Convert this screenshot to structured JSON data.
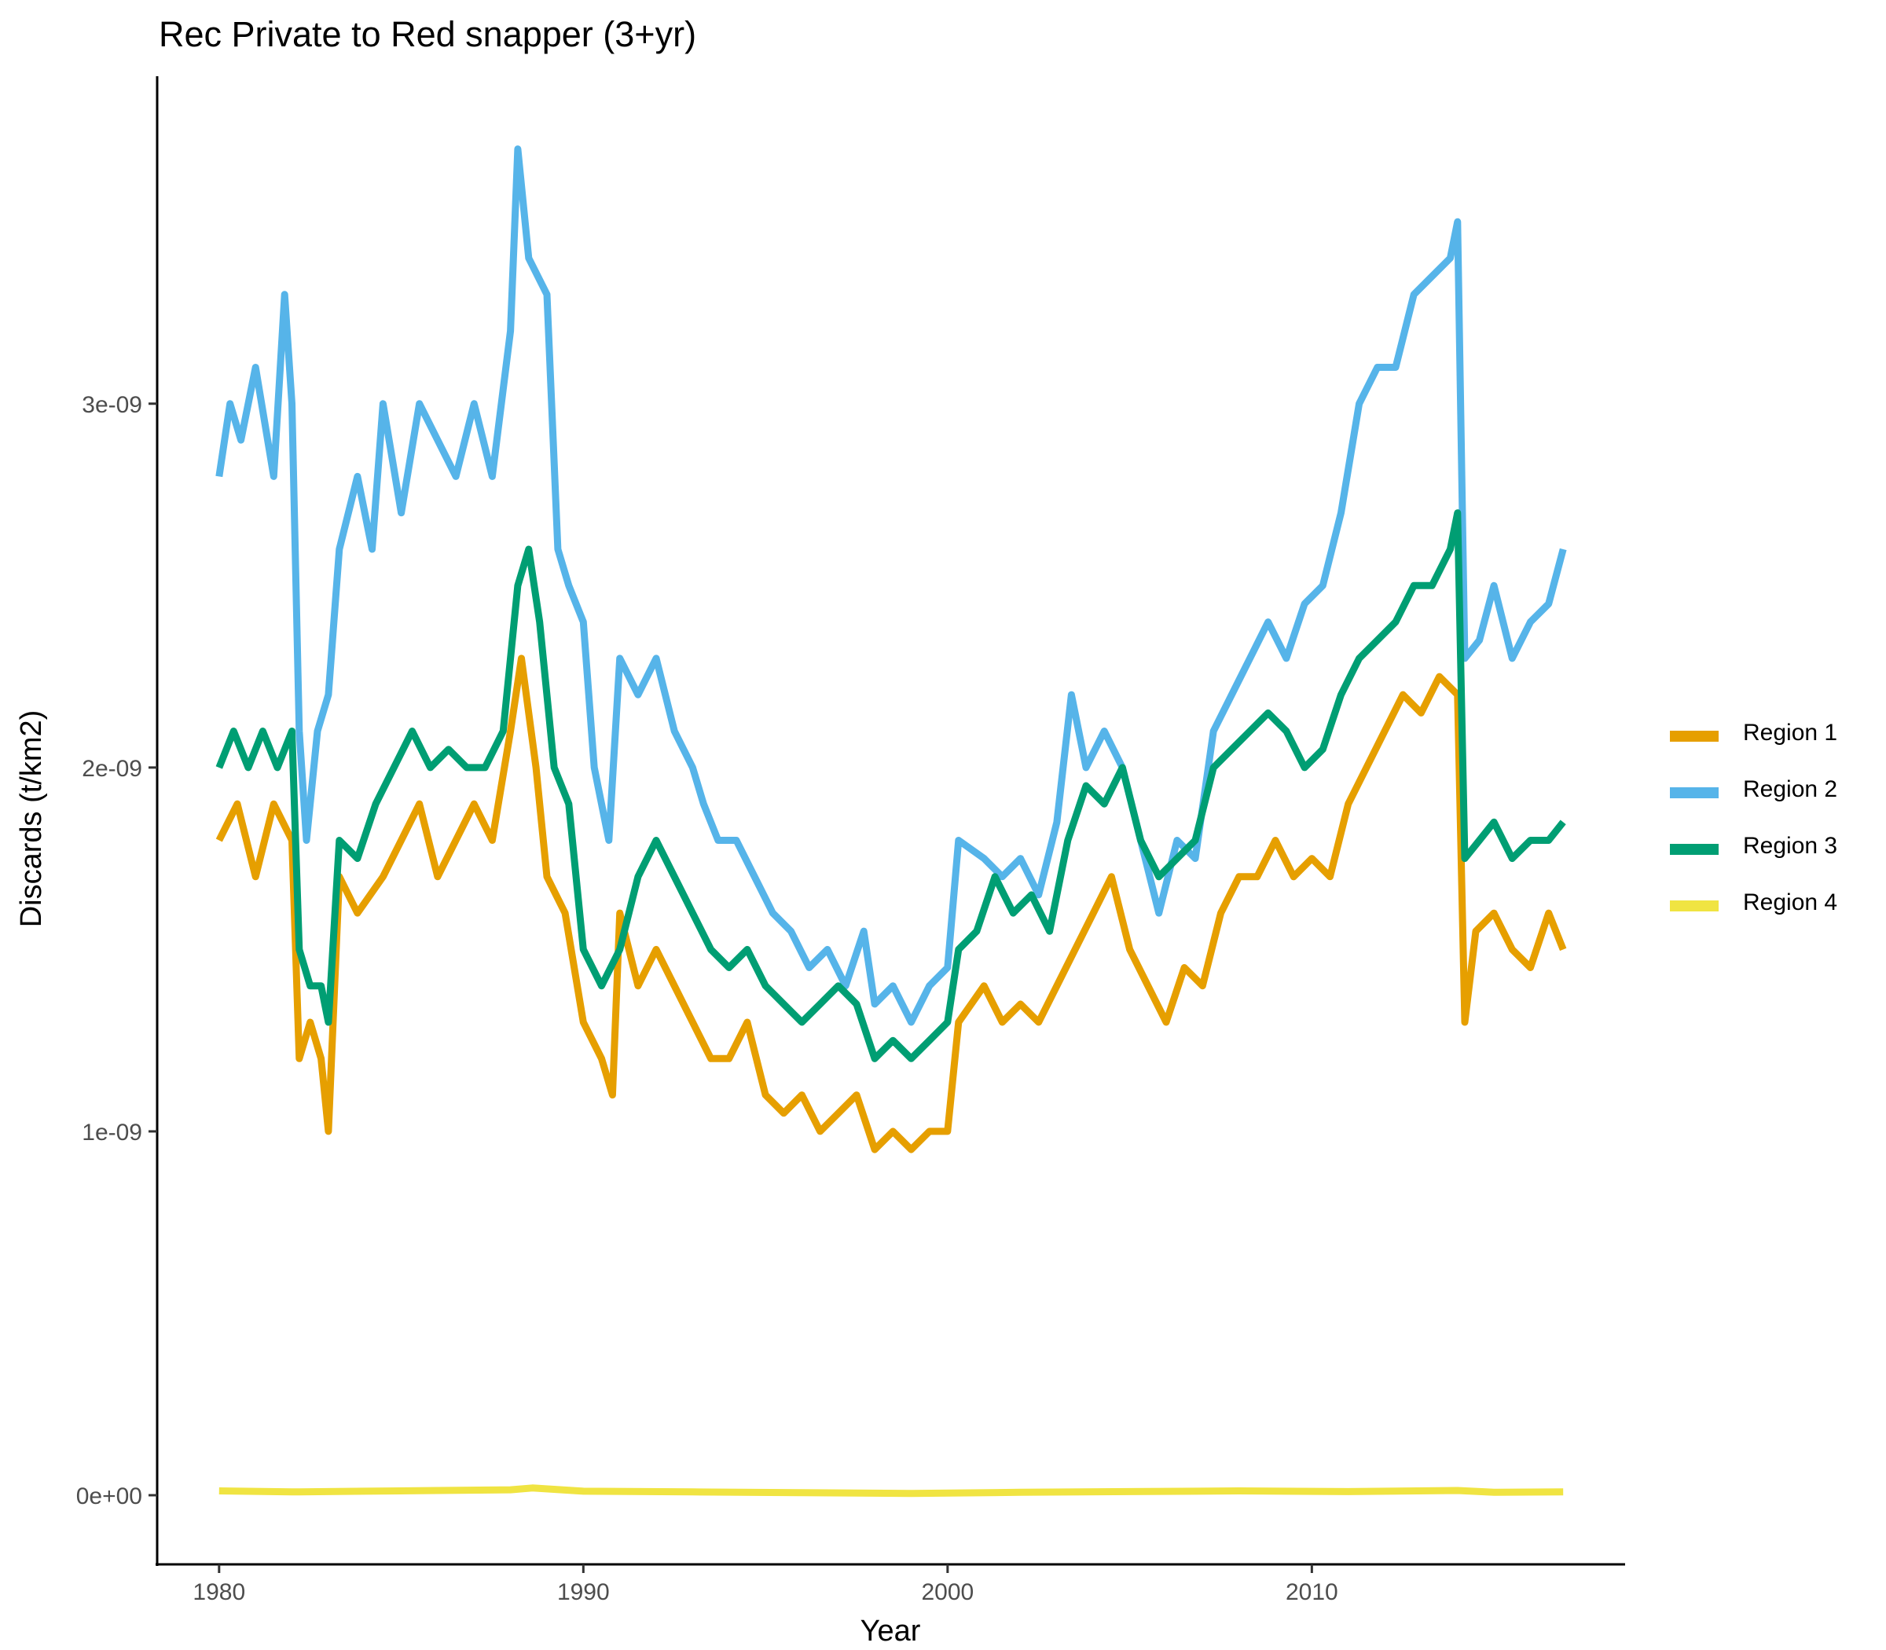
{
  "chart_data": {
    "type": "line",
    "title": "Rec Private to Red snapper (3+yr)",
    "xlabel": "Year",
    "ylabel": "Discards (t/km2)",
    "xlim": [
      1978.3,
      2018.6
    ],
    "ylim": [
      -1.9e-10,
      3.9e-09
    ],
    "x_ticks": [
      1980,
      1990,
      2000,
      2010
    ],
    "x_tick_labels": [
      "1980",
      "1990",
      "2000",
      "2010"
    ],
    "y_ticks": [
      0,
      1e-09,
      2e-09,
      3e-09
    ],
    "y_tick_labels": [
      "0e+00",
      "1e-09",
      "2e-09",
      "3e-09"
    ],
    "grid": false,
    "legend_position": "right",
    "series": [
      {
        "name": "Region 1",
        "color": "#E69F00",
        "points": [
          [
            1980.0,
            1.8e-09
          ],
          [
            1980.5,
            1.9e-09
          ],
          [
            1981.0,
            1.7e-09
          ],
          [
            1981.5,
            1.9e-09
          ],
          [
            1982.0,
            1.8e-09
          ],
          [
            1982.2,
            1.2e-09
          ],
          [
            1982.5,
            1.3e-09
          ],
          [
            1982.8,
            1.2e-09
          ],
          [
            1983.0,
            1e-09
          ],
          [
            1983.3,
            1.7e-09
          ],
          [
            1983.8,
            1.6e-09
          ],
          [
            1984.5,
            1.7e-09
          ],
          [
            1985.0,
            1.8e-09
          ],
          [
            1985.5,
            1.9e-09
          ],
          [
            1986.0,
            1.7e-09
          ],
          [
            1986.5,
            1.8e-09
          ],
          [
            1987.0,
            1.9e-09
          ],
          [
            1987.5,
            1.8e-09
          ],
          [
            1988.0,
            2.1e-09
          ],
          [
            1988.3,
            2.3e-09
          ],
          [
            1988.7,
            2e-09
          ],
          [
            1989.0,
            1.7e-09
          ],
          [
            1989.5,
            1.6e-09
          ],
          [
            1990.0,
            1.3e-09
          ],
          [
            1990.5,
            1.2e-09
          ],
          [
            1990.8,
            1.1e-09
          ],
          [
            1991.0,
            1.6e-09
          ],
          [
            1991.5,
            1.4e-09
          ],
          [
            1992.0,
            1.5e-09
          ],
          [
            1992.5,
            1.4e-09
          ],
          [
            1993.0,
            1.3e-09
          ],
          [
            1993.5,
            1.2e-09
          ],
          [
            1994.0,
            1.2e-09
          ],
          [
            1994.5,
            1.3e-09
          ],
          [
            1995.0,
            1.1e-09
          ],
          [
            1995.5,
            1.05e-09
          ],
          [
            1996.0,
            1.1e-09
          ],
          [
            1996.5,
            1e-09
          ],
          [
            1997.0,
            1.05e-09
          ],
          [
            1997.5,
            1.1e-09
          ],
          [
            1998.0,
            9.5e-10
          ],
          [
            1998.5,
            1e-09
          ],
          [
            1999.0,
            9.5e-10
          ],
          [
            1999.5,
            1e-09
          ],
          [
            2000.0,
            1e-09
          ],
          [
            2000.3,
            1.3e-09
          ],
          [
            2001.0,
            1.4e-09
          ],
          [
            2001.5,
            1.3e-09
          ],
          [
            2002.0,
            1.35e-09
          ],
          [
            2002.5,
            1.3e-09
          ],
          [
            2003.0,
            1.4e-09
          ],
          [
            2003.5,
            1.5e-09
          ],
          [
            2004.0,
            1.6e-09
          ],
          [
            2004.5,
            1.7e-09
          ],
          [
            2005.0,
            1.5e-09
          ],
          [
            2005.5,
            1.4e-09
          ],
          [
            2006.0,
            1.3e-09
          ],
          [
            2006.5,
            1.45e-09
          ],
          [
            2007.0,
            1.4e-09
          ],
          [
            2007.5,
            1.6e-09
          ],
          [
            2008.0,
            1.7e-09
          ],
          [
            2008.5,
            1.7e-09
          ],
          [
            2009.0,
            1.8e-09
          ],
          [
            2009.5,
            1.7e-09
          ],
          [
            2010.0,
            1.75e-09
          ],
          [
            2010.5,
            1.7e-09
          ],
          [
            2011.0,
            1.9e-09
          ],
          [
            2011.5,
            2e-09
          ],
          [
            2012.0,
            2.1e-09
          ],
          [
            2012.5,
            2.2e-09
          ],
          [
            2013.0,
            2.15e-09
          ],
          [
            2013.5,
            2.25e-09
          ],
          [
            2014.0,
            2.2e-09
          ],
          [
            2014.2,
            1.3e-09
          ],
          [
            2014.5,
            1.55e-09
          ],
          [
            2015.0,
            1.6e-09
          ],
          [
            2015.5,
            1.5e-09
          ],
          [
            2016.0,
            1.45e-09
          ],
          [
            2016.5,
            1.6e-09
          ],
          [
            2016.9,
            1.5e-09
          ]
        ]
      },
      {
        "name": "Region 2",
        "color": "#56B4E9",
        "points": [
          [
            1980.0,
            2.8e-09
          ],
          [
            1980.3,
            3e-09
          ],
          [
            1980.6,
            2.9e-09
          ],
          [
            1981.0,
            3.1e-09
          ],
          [
            1981.5,
            2.8e-09
          ],
          [
            1981.8,
            3.3e-09
          ],
          [
            1982.0,
            3e-09
          ],
          [
            1982.2,
            2.1e-09
          ],
          [
            1982.4,
            1.8e-09
          ],
          [
            1982.7,
            2.1e-09
          ],
          [
            1983.0,
            2.2e-09
          ],
          [
            1983.3,
            2.6e-09
          ],
          [
            1983.8,
            2.8e-09
          ],
          [
            1984.2,
            2.6e-09
          ],
          [
            1984.5,
            3e-09
          ],
          [
            1985.0,
            2.7e-09
          ],
          [
            1985.5,
            3e-09
          ],
          [
            1986.0,
            2.9e-09
          ],
          [
            1986.5,
            2.8e-09
          ],
          [
            1987.0,
            3e-09
          ],
          [
            1987.5,
            2.8e-09
          ],
          [
            1988.0,
            3.2e-09
          ],
          [
            1988.2,
            3.7e-09
          ],
          [
            1988.5,
            3.4e-09
          ],
          [
            1989.0,
            3.3e-09
          ],
          [
            1989.3,
            2.6e-09
          ],
          [
            1989.6,
            2.5e-09
          ],
          [
            1990.0,
            2.4e-09
          ],
          [
            1990.3,
            2e-09
          ],
          [
            1990.7,
            1.8e-09
          ],
          [
            1991.0,
            2.3e-09
          ],
          [
            1991.5,
            2.2e-09
          ],
          [
            1992.0,
            2.3e-09
          ],
          [
            1992.5,
            2.1e-09
          ],
          [
            1993.0,
            2e-09
          ],
          [
            1993.3,
            1.9e-09
          ],
          [
            1993.7,
            1.8e-09
          ],
          [
            1994.2,
            1.8e-09
          ],
          [
            1994.7,
            1.7e-09
          ],
          [
            1995.2,
            1.6e-09
          ],
          [
            1995.7,
            1.55e-09
          ],
          [
            1996.2,
            1.45e-09
          ],
          [
            1996.7,
            1.5e-09
          ],
          [
            1997.2,
            1.4e-09
          ],
          [
            1997.7,
            1.55e-09
          ],
          [
            1998.0,
            1.35e-09
          ],
          [
            1998.5,
            1.4e-09
          ],
          [
            1999.0,
            1.3e-09
          ],
          [
            1999.5,
            1.4e-09
          ],
          [
            2000.0,
            1.45e-09
          ],
          [
            2000.3,
            1.8e-09
          ],
          [
            2001.0,
            1.75e-09
          ],
          [
            2001.5,
            1.7e-09
          ],
          [
            2002.0,
            1.75e-09
          ],
          [
            2002.5,
            1.65e-09
          ],
          [
            2003.0,
            1.85e-09
          ],
          [
            2003.4,
            2.2e-09
          ],
          [
            2003.8,
            2e-09
          ],
          [
            2004.3,
            2.1e-09
          ],
          [
            2004.8,
            2e-09
          ],
          [
            2005.3,
            1.8e-09
          ],
          [
            2005.8,
            1.6e-09
          ],
          [
            2006.3,
            1.8e-09
          ],
          [
            2006.8,
            1.75e-09
          ],
          [
            2007.3,
            2.1e-09
          ],
          [
            2007.8,
            2.2e-09
          ],
          [
            2008.3,
            2.3e-09
          ],
          [
            2008.8,
            2.4e-09
          ],
          [
            2009.3,
            2.3e-09
          ],
          [
            2009.8,
            2.45e-09
          ],
          [
            2010.3,
            2.5e-09
          ],
          [
            2010.8,
            2.7e-09
          ],
          [
            2011.3,
            3e-09
          ],
          [
            2011.8,
            3.1e-09
          ],
          [
            2012.3,
            3.1e-09
          ],
          [
            2012.8,
            3.3e-09
          ],
          [
            2013.3,
            3.35e-09
          ],
          [
            2013.8,
            3.4e-09
          ],
          [
            2014.0,
            3.5e-09
          ],
          [
            2014.2,
            2.3e-09
          ],
          [
            2014.6,
            2.35e-09
          ],
          [
            2015.0,
            2.5e-09
          ],
          [
            2015.5,
            2.3e-09
          ],
          [
            2016.0,
            2.4e-09
          ],
          [
            2016.5,
            2.45e-09
          ],
          [
            2016.9,
            2.6e-09
          ]
        ]
      },
      {
        "name": "Region 3",
        "color": "#009E73",
        "points": [
          [
            1980.0,
            2e-09
          ],
          [
            1980.4,
            2.1e-09
          ],
          [
            1980.8,
            2e-09
          ],
          [
            1981.2,
            2.1e-09
          ],
          [
            1981.6,
            2e-09
          ],
          [
            1982.0,
            2.1e-09
          ],
          [
            1982.2,
            1.5e-09
          ],
          [
            1982.5,
            1.4e-09
          ],
          [
            1982.8,
            1.4e-09
          ],
          [
            1983.0,
            1.3e-09
          ],
          [
            1983.3,
            1.8e-09
          ],
          [
            1983.8,
            1.75e-09
          ],
          [
            1984.3,
            1.9e-09
          ],
          [
            1984.8,
            2e-09
          ],
          [
            1985.3,
            2.1e-09
          ],
          [
            1985.8,
            2e-09
          ],
          [
            1986.3,
            2.05e-09
          ],
          [
            1986.8,
            2e-09
          ],
          [
            1987.3,
            2e-09
          ],
          [
            1987.8,
            2.1e-09
          ],
          [
            1988.2,
            2.5e-09
          ],
          [
            1988.5,
            2.6e-09
          ],
          [
            1988.8,
            2.4e-09
          ],
          [
            1989.2,
            2e-09
          ],
          [
            1989.6,
            1.9e-09
          ],
          [
            1990.0,
            1.5e-09
          ],
          [
            1990.5,
            1.4e-09
          ],
          [
            1991.0,
            1.5e-09
          ],
          [
            1991.5,
            1.7e-09
          ],
          [
            1992.0,
            1.8e-09
          ],
          [
            1992.5,
            1.7e-09
          ],
          [
            1993.0,
            1.6e-09
          ],
          [
            1993.5,
            1.5e-09
          ],
          [
            1994.0,
            1.45e-09
          ],
          [
            1994.5,
            1.5e-09
          ],
          [
            1995.0,
            1.4e-09
          ],
          [
            1995.5,
            1.35e-09
          ],
          [
            1996.0,
            1.3e-09
          ],
          [
            1996.5,
            1.35e-09
          ],
          [
            1997.0,
            1.4e-09
          ],
          [
            1997.5,
            1.35e-09
          ],
          [
            1998.0,
            1.2e-09
          ],
          [
            1998.5,
            1.25e-09
          ],
          [
            1999.0,
            1.2e-09
          ],
          [
            1999.5,
            1.25e-09
          ],
          [
            2000.0,
            1.3e-09
          ],
          [
            2000.3,
            1.5e-09
          ],
          [
            2000.8,
            1.55e-09
          ],
          [
            2001.3,
            1.7e-09
          ],
          [
            2001.8,
            1.6e-09
          ],
          [
            2002.3,
            1.65e-09
          ],
          [
            2002.8,
            1.55e-09
          ],
          [
            2003.3,
            1.8e-09
          ],
          [
            2003.8,
            1.95e-09
          ],
          [
            2004.3,
            1.9e-09
          ],
          [
            2004.8,
            2e-09
          ],
          [
            2005.3,
            1.8e-09
          ],
          [
            2005.8,
            1.7e-09
          ],
          [
            2006.3,
            1.75e-09
          ],
          [
            2006.8,
            1.8e-09
          ],
          [
            2007.3,
            2e-09
          ],
          [
            2007.8,
            2.05e-09
          ],
          [
            2008.3,
            2.1e-09
          ],
          [
            2008.8,
            2.15e-09
          ],
          [
            2009.3,
            2.1e-09
          ],
          [
            2009.8,
            2e-09
          ],
          [
            2010.3,
            2.05e-09
          ],
          [
            2010.8,
            2.2e-09
          ],
          [
            2011.3,
            2.3e-09
          ],
          [
            2011.8,
            2.35e-09
          ],
          [
            2012.3,
            2.4e-09
          ],
          [
            2012.8,
            2.5e-09
          ],
          [
            2013.3,
            2.5e-09
          ],
          [
            2013.8,
            2.6e-09
          ],
          [
            2014.0,
            2.7e-09
          ],
          [
            2014.2,
            1.75e-09
          ],
          [
            2014.6,
            1.8e-09
          ],
          [
            2015.0,
            1.85e-09
          ],
          [
            2015.5,
            1.75e-09
          ],
          [
            2016.0,
            1.8e-09
          ],
          [
            2016.5,
            1.8e-09
          ],
          [
            2016.9,
            1.85e-09
          ]
        ]
      },
      {
        "name": "Region 4",
        "color": "#F0E442",
        "points": [
          [
            1980.0,
            1.2e-11
          ],
          [
            1982.0,
            9e-12
          ],
          [
            1984.0,
            1.1e-11
          ],
          [
            1986.0,
            1.3e-11
          ],
          [
            1988.0,
            1.5e-11
          ],
          [
            1988.6,
            2e-11
          ],
          [
            1990.0,
            1.1e-11
          ],
          [
            1993.0,
            9e-12
          ],
          [
            1996.0,
            7e-12
          ],
          [
            1999.0,
            5e-12
          ],
          [
            2002.0,
            8e-12
          ],
          [
            2005.0,
            1e-11
          ],
          [
            2008.0,
            1.2e-11
          ],
          [
            2011.0,
            1e-11
          ],
          [
            2014.0,
            1.3e-11
          ],
          [
            2015.0,
            8e-12
          ],
          [
            2016.9,
            9e-12
          ]
        ]
      }
    ]
  }
}
